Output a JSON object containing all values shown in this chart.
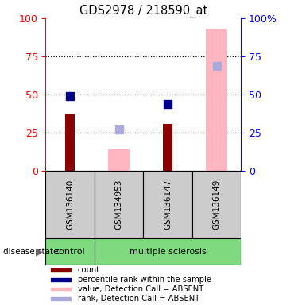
{
  "title": "GDS2978 / 218590_at",
  "samples": [
    "GSM136140",
    "GSM134953",
    "GSM136147",
    "GSM136149"
  ],
  "count_values": [
    37,
    null,
    31,
    null
  ],
  "percentile_rank_values": [
    49,
    null,
    44,
    null
  ],
  "absent_value_bars": [
    null,
    14,
    null,
    93
  ],
  "absent_rank_dots": [
    null,
    27,
    null,
    69
  ],
  "bar_dark_red": "#8B0000",
  "bar_pink": "#FFB6C1",
  "dot_blue": "#00008B",
  "dot_light_blue": "#AAAADD",
  "cell_gray": "#CCCCCC",
  "cell_green": "#7FD97F",
  "ylim": [
    0,
    100
  ],
  "yticks": [
    0,
    25,
    50,
    75,
    100
  ],
  "legend_items": [
    {
      "color": "#8B0000",
      "label": "count"
    },
    {
      "color": "#00008B",
      "label": "percentile rank within the sample"
    },
    {
      "color": "#FFB6C1",
      "label": "value, Detection Call = ABSENT"
    },
    {
      "color": "#AAAADD",
      "label": "rank, Detection Call = ABSENT"
    }
  ]
}
